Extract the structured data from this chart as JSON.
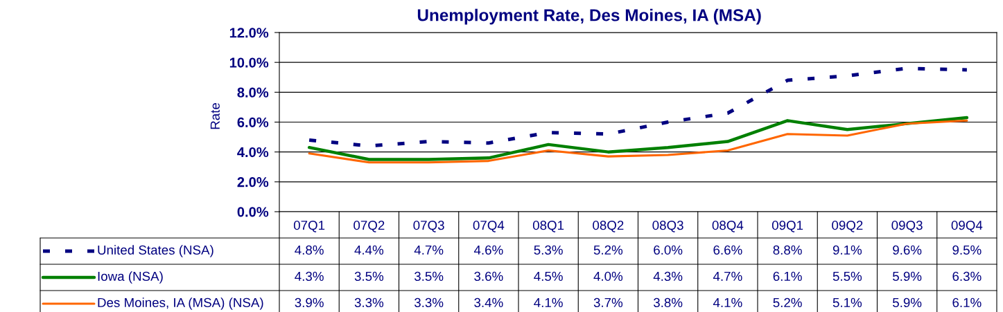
{
  "chart_data": {
    "type": "line",
    "title": "Unemployment Rate, Des Moines, IA (MSA)",
    "ylabel": "Rate",
    "categories": [
      "07Q1",
      "07Q2",
      "07Q3",
      "07Q4",
      "08Q1",
      "08Q2",
      "08Q3",
      "08Q4",
      "09Q1",
      "09Q2",
      "09Q3",
      "09Q4"
    ],
    "series": [
      {
        "name": "United States (NSA)",
        "color": "#000080",
        "line_style": "dashed",
        "values": [
          4.8,
          4.4,
          4.7,
          4.6,
          5.3,
          5.2,
          6.0,
          6.6,
          8.8,
          9.1,
          9.6,
          9.5
        ],
        "value_labels": [
          "4.8%",
          "4.4%",
          "4.7%",
          "4.6%",
          "5.3%",
          "5.2%",
          "6.0%",
          "6.6%",
          "8.8%",
          "9.1%",
          "9.6%",
          "9.5%"
        ]
      },
      {
        "name": "Iowa (NSA)",
        "color": "#008000",
        "values": [
          4.3,
          3.5,
          3.5,
          3.6,
          4.5,
          4.0,
          4.3,
          4.7,
          6.1,
          5.5,
          5.9,
          6.3
        ],
        "value_labels": [
          "4.3%",
          "3.5%",
          "3.5%",
          "3.6%",
          "4.5%",
          "4.0%",
          "4.3%",
          "4.7%",
          "6.1%",
          "5.5%",
          "5.9%",
          "6.3%"
        ]
      },
      {
        "name": "Des Moines, IA (MSA) (NSA)",
        "color": "#ff6600",
        "values": [
          3.9,
          3.3,
          3.3,
          3.4,
          4.1,
          3.7,
          3.8,
          4.1,
          5.2,
          5.1,
          5.9,
          6.1
        ],
        "value_labels": [
          "3.9%",
          "3.3%",
          "3.3%",
          "3.4%",
          "4.1%",
          "3.7%",
          "3.8%",
          "4.1%",
          "5.2%",
          "5.1%",
          "5.9%",
          "6.1%"
        ]
      }
    ],
    "ylim": [
      0,
      12
    ],
    "yticks": [
      {
        "value": 0,
        "label": "0.0%"
      },
      {
        "value": 2,
        "label": "2.0%"
      },
      {
        "value": 4,
        "label": "4.0%"
      },
      {
        "value": 6,
        "label": "6.0%"
      },
      {
        "value": 8,
        "label": "8.0%"
      },
      {
        "value": 10,
        "label": "10.0%"
      },
      {
        "value": 12,
        "label": "12.0%"
      }
    ],
    "grid": "y",
    "legend": "bottom left",
    "line_style": "solid"
  }
}
